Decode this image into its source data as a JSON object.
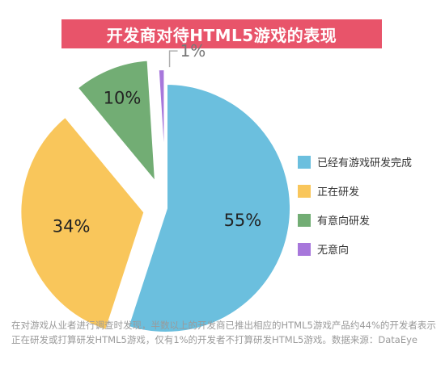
{
  "title": "开发商对待HTML5游戏的表现",
  "chart_data": {
    "type": "pie",
    "title": "开发商对待HTML5游戏的表现",
    "slices": [
      {
        "label": "已经有游戏研发完成",
        "value": 55,
        "display": "55%",
        "color": "#6bbfde"
      },
      {
        "label": "正在研发",
        "value": 34,
        "display": "34%",
        "color": "#f9c65b"
      },
      {
        "label": "有意向研发",
        "value": 10,
        "display": "10%",
        "color": "#72ad74"
      },
      {
        "label": "无意向",
        "value": 1,
        "display": "1%",
        "color": "#a777db"
      }
    ],
    "exploded": [
      "正在研发",
      "有意向研发",
      "无意向"
    ],
    "legend_position": "right"
  },
  "footnote": "在对游戏从业者进行调查时发现，半数以上的开发商已推出相应的HTML5游戏产品约44%的开发者表示正在研发或打算研发HTML5游戏，仅有1%的开发者不打算研发HTML5游戏。数据来源：DataEye"
}
